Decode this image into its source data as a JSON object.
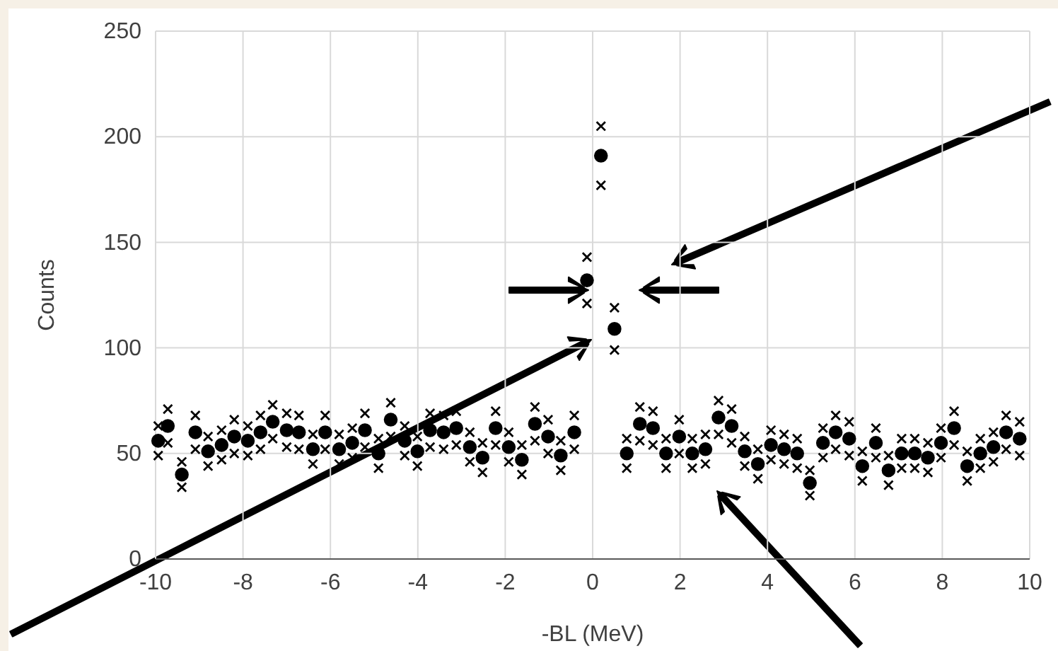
{
  "chart_data": {
    "type": "scatter",
    "xlabel": "-BL (MeV)",
    "ylabel": "Counts",
    "xlim": [
      -10,
      10
    ],
    "ylim": [
      0,
      250
    ],
    "xticks": [
      -10,
      -8,
      -6,
      -4,
      -2,
      0,
      2,
      4,
      6,
      8,
      10
    ],
    "yticks": [
      0,
      50,
      100,
      150,
      200,
      250
    ],
    "grid": true,
    "marker": "circle",
    "x": [
      -9.94,
      -9.72,
      -9.4,
      -9.09,
      -8.8,
      -8.49,
      -8.2,
      -7.89,
      -7.6,
      -7.32,
      -7.0,
      -6.72,
      -6.4,
      -6.12,
      -5.8,
      -5.5,
      -5.21,
      -4.9,
      -4.62,
      -4.3,
      -4.01,
      -3.72,
      -3.41,
      -3.12,
      -2.81,
      -2.52,
      -2.22,
      -1.92,
      -1.62,
      -1.32,
      -1.02,
      -0.73,
      -0.42,
      -0.13,
      0.19,
      0.5,
      0.78,
      1.08,
      1.38,
      1.68,
      1.98,
      2.28,
      2.58,
      2.88,
      3.18,
      3.48,
      3.78,
      4.08,
      4.38,
      4.68,
      4.97,
      5.27,
      5.56,
      5.87,
      6.17,
      6.48,
      6.77,
      7.07,
      7.37,
      7.67,
      7.97,
      8.27,
      8.57,
      8.87,
      9.17,
      9.46,
      9.77
    ],
    "series": [
      {
        "color": "#000000",
        "values": [
          56,
          63,
          40,
          60,
          51,
          54,
          58,
          56,
          60,
          65,
          61,
          60,
          52,
          60,
          52,
          55,
          61,
          50,
          66,
          56,
          51,
          61,
          60,
          62,
          53,
          48,
          62,
          53,
          47,
          64,
          58,
          49,
          60,
          132,
          191,
          109,
          50,
          64,
          62,
          50,
          58,
          50,
          52,
          67,
          63,
          51,
          45,
          54,
          52,
          50,
          36,
          55,
          60,
          57,
          44,
          55,
          42,
          50,
          50,
          48,
          55,
          62,
          44,
          50,
          53,
          60,
          57
        ]
      },
      {
        "color": "#000000",
        "marker": "cross",
        "values": [
          63,
          71,
          46,
          68,
          58,
          61,
          66,
          63,
          68,
          73,
          69,
          68,
          59,
          68,
          59,
          62,
          69,
          57,
          74,
          63,
          58,
          69,
          68,
          70,
          60,
          55,
          70,
          60,
          54,
          72,
          66,
          56,
          68,
          143,
          205,
          119,
          57,
          72,
          70,
          57,
          66,
          57,
          59,
          75,
          71,
          58,
          52,
          61,
          59,
          57,
          42,
          62,
          68,
          65,
          51,
          62,
          49,
          57,
          57,
          55,
          62,
          70,
          51,
          57,
          60,
          68,
          65
        ]
      },
      {
        "color": "#000000",
        "marker": "cross",
        "values": [
          49,
          55,
          34,
          52,
          44,
          47,
          50,
          49,
          52,
          57,
          53,
          52,
          45,
          52,
          45,
          48,
          53,
          43,
          58,
          49,
          44,
          53,
          52,
          54,
          46,
          41,
          54,
          46,
          40,
          56,
          50,
          42,
          52,
          121,
          177,
          99,
          43,
          56,
          54,
          43,
          50,
          43,
          45,
          59,
          55,
          44,
          38,
          47,
          45,
          43,
          30,
          48,
          52,
          49,
          37,
          48,
          35,
          43,
          43,
          41,
          48,
          54,
          37,
          43,
          46,
          52,
          49
        ]
      }
    ]
  }
}
